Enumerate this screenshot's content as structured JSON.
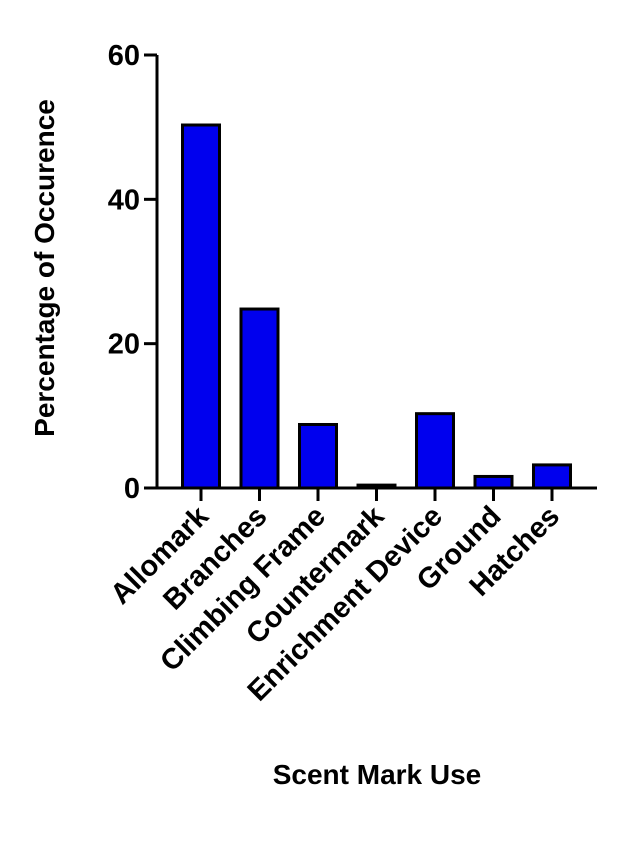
{
  "chart_data": {
    "type": "bar",
    "xlabel": "Scent Mark Use",
    "ylabel": "Percentage of Occurence",
    "categories": [
      "Allomark",
      "Branches",
      "Climbing Frame",
      "Countermark",
      "Enrichment Device",
      "Ground",
      "Hatches"
    ],
    "values": [
      50.3,
      24.8,
      8.8,
      0.4,
      10.3,
      1.6,
      3.2
    ],
    "ylim": [
      0,
      60
    ],
    "yticks": [
      0,
      20,
      40,
      60
    ],
    "grid": false,
    "legend": "none",
    "bar_color": "#0000ee",
    "bar_outline": "#000000"
  }
}
